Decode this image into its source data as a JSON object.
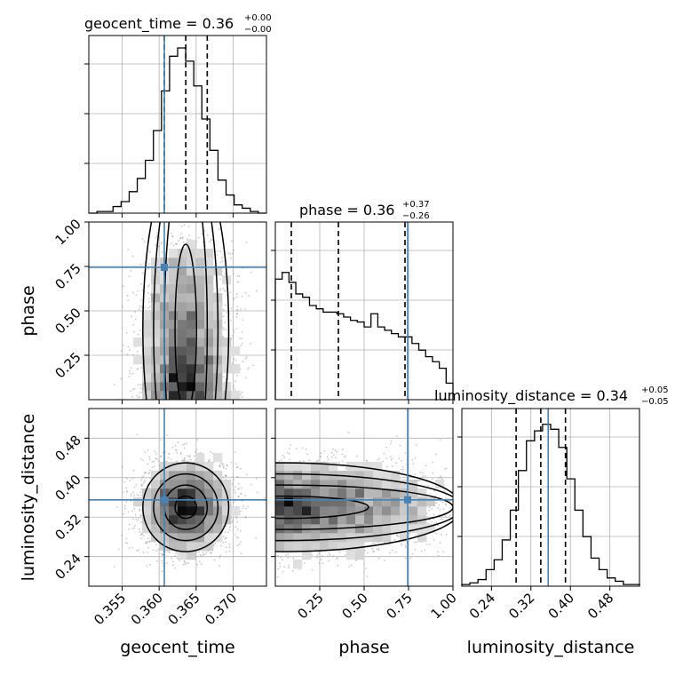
{
  "colors": {
    "truth": "#4682b4",
    "hist": "#000000",
    "grid": "#b0b0b0",
    "scatter": "#9a9a9a"
  },
  "titles": {
    "geocent_time": {
      "prefix": "geocent_time = 0.36",
      "sup": "+0.00",
      "sub": "−0.00"
    },
    "phase": {
      "prefix": "phase = 0.36",
      "sup": "+0.37",
      "sub": "−0.26"
    },
    "luminosity_distance": {
      "prefix": "luminosity_distance = 0.34",
      "sup": "+0.05",
      "sub": "−0.05"
    }
  },
  "axis_labels": {
    "geocent_time": "geocent_time",
    "phase": "phase",
    "luminosity_distance": "luminosity_distance"
  },
  "chart_data": {
    "type": "corner",
    "parameters": [
      "geocent_time",
      "phase",
      "luminosity_distance"
    ],
    "ranges": {
      "geocent_time": [
        0.3505,
        0.3745
      ],
      "phase": [
        0.0,
        1.0
      ],
      "luminosity_distance": [
        0.18,
        0.54
      ]
    },
    "ticks": {
      "geocent_time": {
        "values": [
          0.355,
          0.36,
          0.365,
          0.37
        ],
        "labels": [
          "0.355",
          "0.360",
          "0.365",
          "0.370"
        ]
      },
      "phase": {
        "values": [
          0.25,
          0.5,
          0.75,
          1.0
        ],
        "labels": [
          "0.25",
          "0.50",
          "0.75",
          "1.00"
        ]
      },
      "luminosity_distance": {
        "values": [
          0.24,
          0.32,
          0.4,
          0.48
        ],
        "labels": [
          "0.24",
          "0.32",
          "0.40",
          "0.48"
        ]
      }
    },
    "truths": {
      "geocent_time": 0.3607,
      "phase": 0.745,
      "luminosity_distance": 0.355
    },
    "quantiles": {
      "geocent_time": [
        0.3607,
        0.3636,
        0.3665
      ],
      "phase": [
        0.09,
        0.355,
        0.73
      ],
      "luminosity_distance": [
        0.29,
        0.34,
        0.39
      ]
    },
    "histograms": {
      "geocent_time": [
        0,
        0.01,
        0.01,
        0.04,
        0.07,
        0.13,
        0.21,
        0.32,
        0.5,
        0.74,
        0.95,
        1.0,
        0.92,
        0.77,
        0.57,
        0.38,
        0.2,
        0.11,
        0.05,
        0.03,
        0.01,
        0
      ],
      "phase": [
        0.73,
        0.77,
        0.71,
        0.64,
        0.62,
        0.57,
        0.55,
        0.53,
        0.53,
        0.52,
        0.5,
        0.48,
        0.47,
        0.44,
        0.52,
        0.44,
        0.42,
        0.4,
        0.38,
        0.38,
        0.34,
        0.3,
        0.26,
        0.23,
        0.19,
        0.1
      ],
      "luminosity_distance": [
        0.01,
        0.02,
        0.04,
        0.1,
        0.16,
        0.28,
        0.46,
        0.7,
        0.88,
        0.94,
        0.98,
        0.95,
        0.84,
        0.65,
        0.46,
        0.3,
        0.17,
        0.1,
        0.05,
        0.03,
        0.01,
        0.01
      ]
    },
    "posterior_samples": {
      "geocent_time": {
        "mean": 0.3636,
        "sd": 0.0029
      },
      "phase": {
        "dist": "decreasing",
        "min": 0.0,
        "max": 1.0
      },
      "luminosity_distance": {
        "mean": 0.34,
        "sd": 0.045
      }
    }
  }
}
